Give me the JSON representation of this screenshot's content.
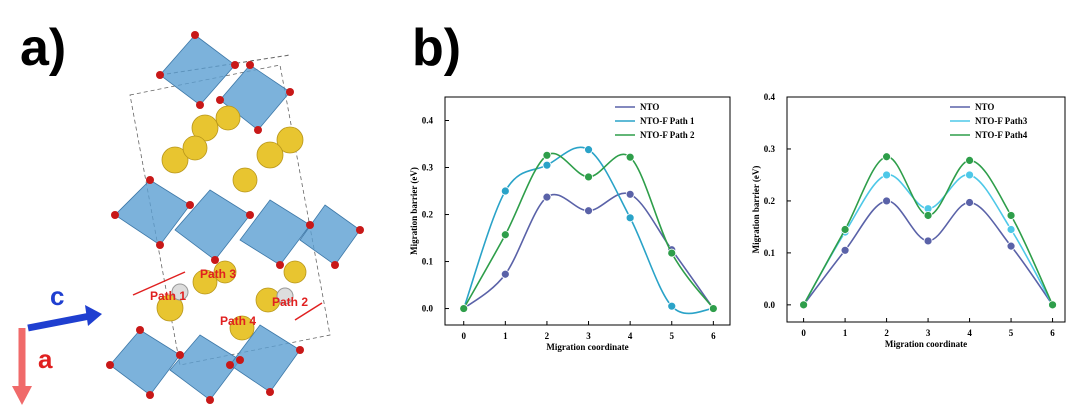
{
  "panels": {
    "a": "a)",
    "b": "b)"
  },
  "structure": {
    "axes": [
      "c",
      "a"
    ],
    "paths": [
      "Path 1",
      "Path 2",
      "Path 3",
      "Path 4"
    ]
  },
  "chart_data": [
    {
      "type": "line",
      "x_label": "Migration coordinate",
      "y_label": "Migration barrier (eV)",
      "x": [
        0,
        1,
        2,
        3,
        4,
        5,
        6
      ],
      "series": [
        {
          "name": "NTO",
          "color": "#5a62a8",
          "values": [
            0,
            0.073,
            0.237,
            0.208,
            0.243,
            0.125,
            0
          ]
        },
        {
          "name": "NTO-F  Path 1",
          "color": "#2aa3c8",
          "values": [
            0,
            0.25,
            0.305,
            0.338,
            0.193,
            0.005,
            0
          ]
        },
        {
          "name": "NTO-F  Path 2",
          "color": "#2e9e4a",
          "values": [
            0,
            0.157,
            0.326,
            0.28,
            0.322,
            0.118,
            0
          ]
        }
      ],
      "xlim": [
        -0.45,
        6.4
      ],
      "xticks": [
        0,
        1,
        2,
        3,
        4,
        5,
        6
      ],
      "ylim": [
        -0.035,
        0.45
      ],
      "yticks": [
        {
          "value": 0,
          "label": "0.0"
        },
        0.1,
        0.2,
        0.3,
        0.4
      ],
      "grid": false,
      "legend": "upper right"
    },
    {
      "type": "line",
      "x_label": "Migration coordinate",
      "y_label": "Migration barrier (eV)",
      "x": [
        0,
        1,
        2,
        3,
        4,
        5,
        6
      ],
      "series": [
        {
          "name": "NTO",
          "color": "#5a62a8",
          "values": [
            0,
            0.105,
            0.2,
            0.123,
            0.197,
            0.113,
            0
          ]
        },
        {
          "name": "NTO-F  Path3",
          "color": "#4ec8e8",
          "values": [
            0,
            0.14,
            0.25,
            0.185,
            0.25,
            0.145,
            0
          ]
        },
        {
          "name": "NTO-F  Path4",
          "color": "#2e9e4a",
          "values": [
            0,
            0.145,
            0.285,
            0.172,
            0.278,
            0.172,
            0
          ]
        }
      ],
      "xlim": [
        -0.4,
        6.3
      ],
      "xticks": [
        0,
        1,
        2,
        3,
        4,
        5,
        6
      ],
      "ylim": [
        -0.033,
        0.4
      ],
      "yticks": [
        {
          "value": 0,
          "label": "0.0"
        },
        0.1,
        0.2,
        0.3,
        0.4
      ],
      "grid": false,
      "legend": "upper right"
    }
  ]
}
